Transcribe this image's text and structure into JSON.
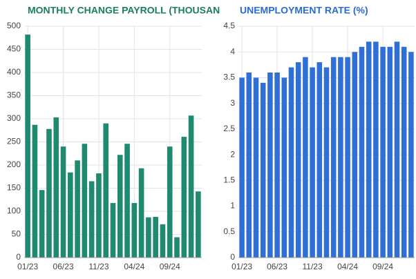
{
  "chart_data": [
    {
      "type": "bar",
      "title": "MONTHLY CHANGE PAYROLL (THOUSANDS)",
      "color": "#1f8a6f",
      "title_color": "#1a7d63",
      "categories": [
        "01/23",
        null,
        null,
        null,
        null,
        "06/23",
        null,
        null,
        null,
        null,
        "11/23",
        null,
        null,
        null,
        null,
        "04/24",
        null,
        null,
        null,
        null,
        "09/24",
        null,
        null,
        null,
        null
      ],
      "values": [
        482,
        287,
        146,
        278,
        303,
        240,
        184,
        210,
        246,
        165,
        182,
        290,
        118,
        222,
        246,
        118,
        193,
        87,
        88,
        72,
        240,
        44,
        261,
        307,
        143
      ],
      "ylim": [
        0,
        500
      ],
      "yticks": [
        0,
        50,
        100,
        150,
        200,
        250,
        300,
        350,
        400,
        450,
        500
      ],
      "grid": true
    },
    {
      "type": "bar",
      "title": "UNEMPLOYMENT RATE (%)",
      "color": "#2f6fd6",
      "title_color": "#2a6ad4",
      "categories": [
        "01/23",
        null,
        null,
        null,
        null,
        "06/23",
        null,
        null,
        null,
        null,
        "11/23",
        null,
        null,
        null,
        null,
        "04/24",
        null,
        null,
        null,
        null,
        "09/24",
        null,
        null,
        null,
        null
      ],
      "values": [
        3.5,
        3.6,
        3.5,
        3.4,
        3.6,
        3.6,
        3.5,
        3.7,
        3.8,
        3.9,
        3.7,
        3.8,
        3.7,
        3.9,
        3.9,
        3.9,
        4.0,
        4.1,
        4.2,
        4.2,
        4.1,
        4.1,
        4.2,
        4.1,
        4.0
      ],
      "ylim": [
        0,
        4.5
      ],
      "yticks": [
        0,
        0.5,
        1,
        1.5,
        2,
        2.5,
        3,
        3.5,
        4,
        4.5
      ],
      "grid": true
    }
  ]
}
